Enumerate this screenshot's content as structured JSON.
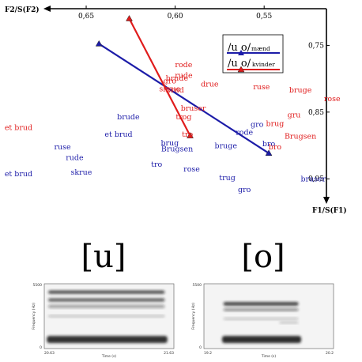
{
  "chart_data": [
    {
      "type": "scatter",
      "title": "",
      "xlabel": "F2/S(F2)",
      "ylabel": "F1/S(F1)",
      "x_axis": {
        "position": "top",
        "direction": "reversed",
        "range": [
          0.67,
          0.515
        ],
        "ticks": [
          0.65,
          0.6,
          0.55
        ],
        "tick_labels": [
          "0,65",
          "0,60",
          "0,55"
        ]
      },
      "y_axis": {
        "position": "right",
        "direction": "downward",
        "range": [
          0.695,
          0.99
        ],
        "ticks": [
          0.75,
          0.85,
          0.95
        ],
        "tick_labels": [
          "0,75",
          "0,85",
          "0,95"
        ]
      },
      "legend": {
        "placement": "top-right",
        "entries": [
          {
            "prefix": "/u o/",
            "suffix": "mænd",
            "color": "#1c1ca8"
          },
          {
            "prefix": "/u o/",
            "suffix": "kvinder",
            "color": "#e01c1c"
          }
        ]
      },
      "series": [
        {
          "name": "mænd",
          "color": "#1c1ca8",
          "line": [
            {
              "x": 0.6428,
              "y": 0.7476
            },
            {
              "x": 0.5474,
              "y": 0.9116
            }
          ],
          "labels": [
            {
              "text": "brude",
              "x": 0.6263,
              "y": 0.8606
            },
            {
              "text": "et brud",
              "x": 0.6318,
              "y": 0.8868
            },
            {
              "text": "brug",
              "x": 0.603,
              "y": 0.8999
            },
            {
              "text": "Brugsen",
              "x": 0.5989,
              "y": 0.9086
            },
            {
              "text": "ruse",
              "x": 0.6633,
              "y": 0.9057
            },
            {
              "text": "rude",
              "x": 0.6565,
              "y": 0.9217
            },
            {
              "text": "et brud",
              "x": 0.688,
              "y": 0.9464
            },
            {
              "text": "skrue",
              "x": 0.6527,
              "y": 0.9435
            },
            {
              "text": "tro",
              "x": 0.6104,
              "y": 0.9318
            },
            {
              "text": "rose",
              "x": 0.5907,
              "y": 0.9391
            },
            {
              "text": "trug",
              "x": 0.5707,
              "y": 0.9522
            },
            {
              "text": "gro",
              "x": 0.5611,
              "y": 0.9697
            },
            {
              "text": "bruge",
              "x": 0.5715,
              "y": 0.9042
            },
            {
              "text": "rode",
              "x": 0.5611,
              "y": 0.8839
            },
            {
              "text": "gro",
              "x": 0.554,
              "y": 0.8723
            },
            {
              "text": "bro",
              "x": 0.5474,
              "y": 0.9013
            },
            {
              "text": "bruser",
              "x": 0.5224,
              "y": 0.9537
            }
          ]
        },
        {
          "name": "kvinder",
          "color": "#e01c1c",
          "line": [
            {
              "x": 0.6258,
              "y": 0.7098
            },
            {
              "x": 0.5916,
              "y": 0.8853
            }
          ],
          "labels": [
            {
              "text": "rode",
              "x": 0.5952,
              "y": 0.7825
            },
            {
              "text": "rude",
              "x": 0.5952,
              "y": 0.7985
            },
            {
              "text": "brude",
              "x": 0.599,
              "y": 0.8028
            },
            {
              "text": "gro",
              "x": 0.603,
              "y": 0.8072
            },
            {
              "text": "skrue",
              "x": 0.603,
              "y": 0.8188
            },
            {
              "text": "brud",
              "x": 0.6001,
              "y": 0.8203
            },
            {
              "text": "drue",
              "x": 0.5806,
              "y": 0.8115
            },
            {
              "text": "bruser",
              "x": 0.5898,
              "y": 0.8479
            },
            {
              "text": "trog",
              "x": 0.5952,
              "y": 0.861
            },
            {
              "text": "tro",
              "x": 0.5931,
              "y": 0.8872
            },
            {
              "text": "ruse",
              "x": 0.5515,
              "y": 0.8159
            },
            {
              "text": "bruge",
              "x": 0.5296,
              "y": 0.8203
            },
            {
              "text": "rose",
              "x": 0.5118,
              "y": 0.8334
            },
            {
              "text": "gru",
              "x": 0.5332,
              "y": 0.8581
            },
            {
              "text": "brug",
              "x": 0.5439,
              "y": 0.8712
            },
            {
              "text": "Brugsen",
              "x": 0.5296,
              "y": 0.8901
            },
            {
              "text": "bro",
              "x": 0.5439,
              "y": 0.9057
            },
            {
              "text": "et brud",
              "x": 0.688,
              "y": 0.8766
            }
          ]
        }
      ]
    }
  ],
  "phonemes": [
    {
      "symbol": "[u]"
    },
    {
      "symbol": "[o]"
    }
  ],
  "spectrograms": [
    {
      "y_axis_label": "Frequency (Hz)",
      "y_max_label": "5500",
      "y_min_label": "0",
      "x_axis_label": "Time (s)",
      "x_start_label": "20.63",
      "x_end_label": "21.63",
      "bands": [
        {
          "y": 0.13,
          "h": 0.055,
          "t0": 0.03,
          "t1": 0.93,
          "opacity": 0.72
        },
        {
          "y": 0.25,
          "h": 0.055,
          "t0": 0.03,
          "t1": 0.93,
          "opacity": 0.66
        },
        {
          "y": 0.35,
          "h": 0.05,
          "t0": 0.03,
          "t1": 0.93,
          "opacity": 0.38
        },
        {
          "y": 0.5,
          "h": 0.035,
          "t0": 0.03,
          "t1": 0.93,
          "opacity": 0.25
        },
        {
          "y": 0.86,
          "h": 0.11,
          "t0": 0.02,
          "t1": 0.95,
          "opacity": 0.88
        }
      ]
    },
    {
      "y_axis_label": "Frequency (Hz)",
      "y_max_label": "5500",
      "y_min_label": "0",
      "x_axis_label": "Time (s)",
      "x_start_label": "19.2",
      "x_end_label": "20.2",
      "bands": [
        {
          "y": 0.31,
          "h": 0.06,
          "t0": 0.15,
          "t1": 0.73,
          "opacity": 0.78
        },
        {
          "y": 0.4,
          "h": 0.045,
          "t0": 0.15,
          "t1": 0.73,
          "opacity": 0.45
        },
        {
          "y": 0.54,
          "h": 0.035,
          "t0": 0.15,
          "t1": 0.73,
          "opacity": 0.22
        },
        {
          "y": 0.6,
          "h": 0.03,
          "t0": 0.58,
          "t1": 0.73,
          "opacity": 0.22
        },
        {
          "y": 0.86,
          "h": 0.11,
          "t0": 0.14,
          "t1": 0.75,
          "opacity": 0.9
        }
      ]
    }
  ]
}
